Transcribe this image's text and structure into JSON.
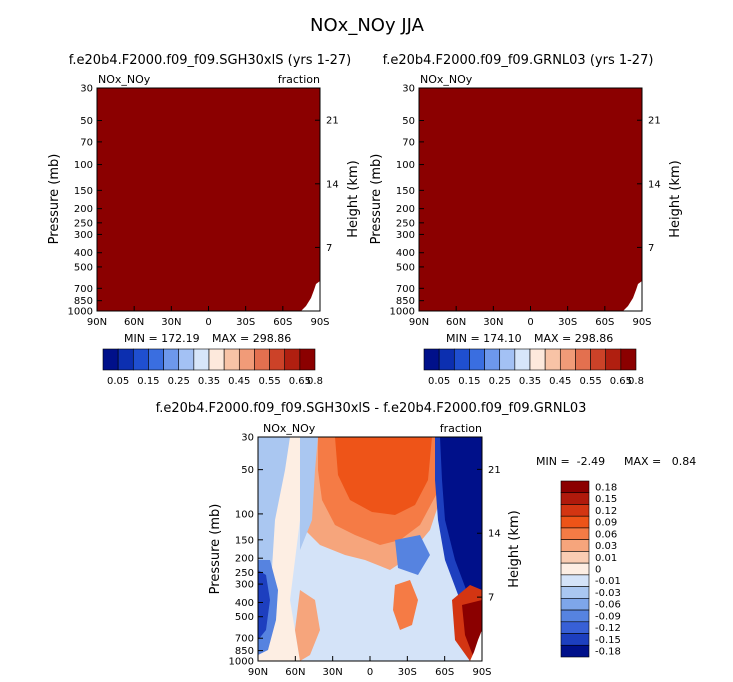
{
  "figure_title": "NOx_NOy JJA",
  "chart_data": [
    {
      "type": "heatmap",
      "title": "f.e20b4.F2000.f09_f09.SGH30xlS (yrs 1-27)",
      "left_label": "NOx_NOy",
      "right_label": "fraction",
      "ylabel": "Pressure (mb)",
      "ylabel_right": "Height (km)",
      "x_ticks": [
        "90N",
        "60N",
        "30N",
        "0",
        "30S",
        "60S",
        "90S"
      ],
      "y_ticks": [
        "30",
        "50",
        "70",
        "100",
        "150",
        "200",
        "250",
        "300",
        "400",
        "500",
        "700",
        "850",
        "1000"
      ],
      "y_ticks_right": [
        "21",
        "14",
        "7"
      ],
      "min_text": "MIN = 172.19",
      "max_text": "MAX = 298.86",
      "fill_color": "#8b0000",
      "colorbar_labels": [
        "0.05",
        "0.15",
        "0.25",
        "0.35",
        "0.45",
        "0.55",
        "0.65",
        "0.8"
      ]
    },
    {
      "type": "heatmap",
      "title": "f.e20b4.F2000.f09_f09.GRNL03 (yrs 1-27)",
      "left_label": "NOx_NOy",
      "right_label": "",
      "ylabel": "Pressure (mb)",
      "ylabel_right": "Height (km)",
      "x_ticks": [
        "90N",
        "60N",
        "30N",
        "0",
        "30S",
        "60S",
        "90S"
      ],
      "y_ticks": [
        "30",
        "50",
        "70",
        "100",
        "150",
        "200",
        "250",
        "300",
        "400",
        "500",
        "700",
        "850",
        "1000"
      ],
      "y_ticks_right": [
        "21",
        "14",
        "7"
      ],
      "min_text": "MIN = 174.10",
      "max_text": "MAX = 298.86",
      "fill_color": "#8b0000",
      "colorbar_labels": [
        "0.05",
        "0.15",
        "0.25",
        "0.35",
        "0.45",
        "0.55",
        "0.65",
        "0.8"
      ]
    },
    {
      "type": "heatmap",
      "title": "f.e20b4.F2000.f09_f09.SGH30xlS - f.e20b4.F2000.f09_f09.GRNL03",
      "left_label": "NOx_NOy",
      "right_label": "fraction",
      "ylabel": "Pressure (mb)",
      "ylabel_right": "Height (km)",
      "x_ticks": [
        "90N",
        "60N",
        "30N",
        "0",
        "30S",
        "60S",
        "90S"
      ],
      "y_ticks": [
        "30",
        "50",
        "100",
        "150",
        "200",
        "250",
        "300",
        "400",
        "500",
        "700",
        "850",
        "1000"
      ],
      "y_ticks_right": [
        "21",
        "14",
        "7"
      ],
      "min_text": "MIN =  -2.49",
      "max_text": "MAX =   0.84",
      "colorbar_labels": [
        "0.18",
        "0.15",
        "0.12",
        "0.09",
        "0.06",
        "0.03",
        "0.01",
        "0",
        "-0.01",
        "-0.03",
        "-0.06",
        "-0.09",
        "-0.12",
        "-0.15",
        "-0.18"
      ]
    }
  ],
  "palettes": {
    "top_colorbar": [
      "#00108a",
      "#0c2fb0",
      "#1f4fd0",
      "#3a6ee0",
      "#6d98ec",
      "#a3c1f4",
      "#d7e6fa",
      "#fde9dc",
      "#f8c3a6",
      "#f19b78",
      "#e3704f",
      "#cc4228",
      "#b01f10",
      "#8b0000"
    ],
    "diff_colorbar": [
      "#8b0000",
      "#b01a0c",
      "#d33512",
      "#ee5418",
      "#f57b45",
      "#f6a57c",
      "#f9cdb3",
      "#fdeee3",
      "#d4e3f8",
      "#aac7f1",
      "#7ea6ea",
      "#5683e0",
      "#3860d6",
      "#1d3fbf",
      "#00108a"
    ]
  }
}
